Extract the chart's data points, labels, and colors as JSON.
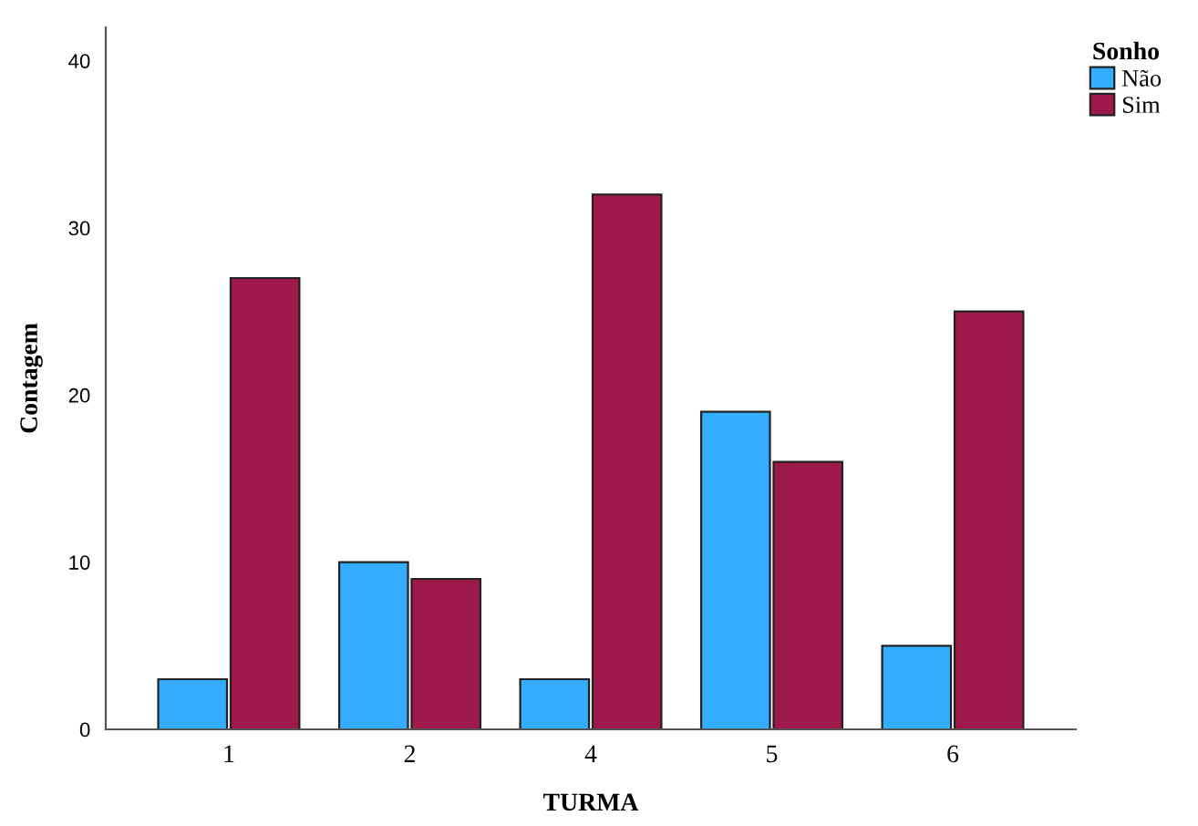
{
  "chart_data": {
    "type": "bar",
    "xlabel": "TURMA",
    "ylabel": "Contagem",
    "legend_title": "Sonho",
    "categories": [
      "1",
      "2",
      "4",
      "5",
      "6"
    ],
    "series": [
      {
        "name": "Não",
        "color": "#33adff",
        "values": [
          3,
          10,
          3,
          19,
          5
        ]
      },
      {
        "name": "Sim",
        "color": "#9e1a4a",
        "values": [
          27,
          9,
          32,
          16,
          25
        ]
      }
    ],
    "ylim": [
      0,
      42
    ],
    "yticks": [
      0,
      10,
      20,
      30,
      40
    ],
    "grid": false,
    "legend": "top right"
  }
}
